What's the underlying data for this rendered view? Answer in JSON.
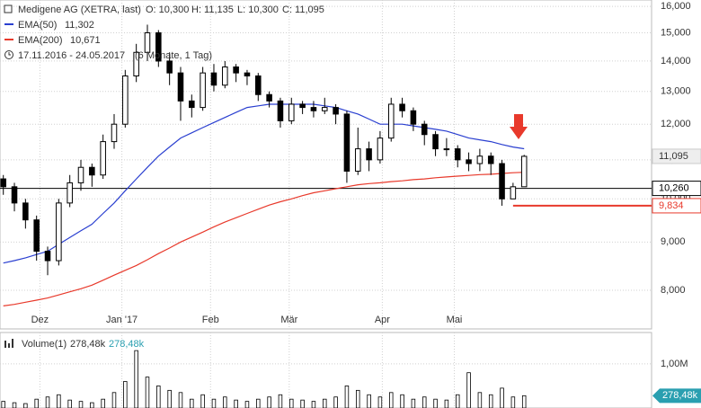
{
  "chart_data": {
    "type": "candlestick",
    "log_scale": true,
    "grid": true,
    "title": "Medigene AG (XETRA, last)",
    "price_summary": [
      "O: 10,300",
      "H: 11,135",
      "L: 10,300",
      "C: 11,095"
    ],
    "date_range": "17.11.2016 - 24.05.2017",
    "period": "(6 Monate, 1 Tag)",
    "ylim": [
      7.28,
      16.25
    ],
    "yticks": [
      {
        "value": 8,
        "label": "8,000"
      },
      {
        "value": 9,
        "label": "9,000"
      },
      {
        "value": 10,
        "label": "10,000"
      },
      {
        "value": 11,
        "label": "11,000"
      },
      {
        "value": 12,
        "label": "12,000"
      },
      {
        "value": 13,
        "label": "13,000"
      },
      {
        "value": 14,
        "label": "14,000"
      },
      {
        "value": 15,
        "label": "15,000"
      },
      {
        "value": 16,
        "label": "16,000"
      }
    ],
    "xlim": [
      -0.3,
      58.5
    ],
    "xticks": [
      {
        "value": 3.3,
        "label": "Dez"
      },
      {
        "value": 10.7,
        "label": "Jan '17"
      },
      {
        "value": 18.7,
        "label": "Feb"
      },
      {
        "value": 25.8,
        "label": "Mär"
      },
      {
        "value": 34.2,
        "label": "Apr"
      },
      {
        "value": 40.7,
        "label": "Mai"
      }
    ],
    "open": [
      10.5,
      10.3,
      9.9,
      9.5,
      8.8,
      8.6,
      9.9,
      10.4,
      10.8,
      10.6,
      11.5,
      12.0,
      13.5,
      14.3,
      15.0,
      14.0,
      13.6,
      12.7,
      12.5,
      13.6,
      13.2,
      13.8,
      13.6,
      13.5,
      12.9,
      12.7,
      12.1,
      12.6,
      12.5,
      12.4,
      12.5,
      12.3,
      10.7,
      11.3,
      11.0,
      11.6,
      12.6,
      12.4,
      12.0,
      11.7,
      11.3,
      11.3,
      11.0,
      10.9,
      11.1,
      10.9,
      10.0,
      10.3
    ],
    "high": [
      10.6,
      10.4,
      10.0,
      9.6,
      8.9,
      10.0,
      10.6,
      11.0,
      10.9,
      11.7,
      12.3,
      13.7,
      14.6,
      15.3,
      15.1,
      14.3,
      13.8,
      12.9,
      13.8,
      13.9,
      14.0,
      13.9,
      13.7,
      13.6,
      13.0,
      12.8,
      12.8,
      12.7,
      12.7,
      12.8,
      12.6,
      12.4,
      11.9,
      11.5,
      11.8,
      12.8,
      12.8,
      12.5,
      12.1,
      11.8,
      11.6,
      11.4,
      11.2,
      11.3,
      11.2,
      11.0,
      10.4,
      11.135
    ],
    "low": [
      10.1,
      9.7,
      9.3,
      8.6,
      8.3,
      8.5,
      9.8,
      10.2,
      10.3,
      10.5,
      11.3,
      11.9,
      13.3,
      14.0,
      13.8,
      13.2,
      12.1,
      12.2,
      12.4,
      13.0,
      13.1,
      13.3,
      13.2,
      12.7,
      12.5,
      11.9,
      12.0,
      12.3,
      12.2,
      12.3,
      12.0,
      10.4,
      10.6,
      10.7,
      10.9,
      11.5,
      12.2,
      11.8,
      11.4,
      11.1,
      11.1,
      10.8,
      10.7,
      10.7,
      10.6,
      9.834,
      10.0,
      10.3
    ],
    "close": [
      10.3,
      9.9,
      9.5,
      8.8,
      8.6,
      9.9,
      10.4,
      10.8,
      10.6,
      11.5,
      12.0,
      13.5,
      14.3,
      15.0,
      14.0,
      13.6,
      12.7,
      12.5,
      13.6,
      13.2,
      13.8,
      13.6,
      13.5,
      12.9,
      12.7,
      12.1,
      12.6,
      12.5,
      12.4,
      12.5,
      12.3,
      10.7,
      11.3,
      11.0,
      11.6,
      12.6,
      12.4,
      12.0,
      11.7,
      11.3,
      11.3,
      11.0,
      10.9,
      11.1,
      10.9,
      10.0,
      10.3,
      11.095
    ],
    "series": [
      {
        "name": "EMA(50)",
        "color": "#2a3fd0",
        "value_label": "11,302",
        "values": [
          8.55,
          8.6,
          8.66,
          8.73,
          8.8,
          8.95,
          9.1,
          9.25,
          9.4,
          9.65,
          9.9,
          10.2,
          10.5,
          10.8,
          11.1,
          11.35,
          11.6,
          11.75,
          11.9,
          12.05,
          12.2,
          12.35,
          12.5,
          12.55,
          12.6,
          12.6,
          12.6,
          12.6,
          12.6,
          12.55,
          12.5,
          12.4,
          12.3,
          12.15,
          12.0,
          12.0,
          12.0,
          11.95,
          11.9,
          11.85,
          11.8,
          11.7,
          11.6,
          11.55,
          11.5,
          11.42,
          11.35,
          11.302
        ]
      },
      {
        "name": "EMA(200)",
        "color": "#e8392b",
        "value_label": "10,671",
        "values": [
          7.7,
          7.73,
          7.77,
          7.81,
          7.85,
          7.91,
          7.97,
          8.03,
          8.1,
          8.2,
          8.3,
          8.4,
          8.5,
          8.62,
          8.75,
          8.87,
          9.0,
          9.11,
          9.22,
          9.34,
          9.45,
          9.55,
          9.65,
          9.75,
          9.85,
          9.93,
          10.0,
          10.08,
          10.15,
          10.2,
          10.25,
          10.3,
          10.35,
          10.38,
          10.4,
          10.43,
          10.45,
          10.48,
          10.5,
          10.53,
          10.55,
          10.57,
          10.59,
          10.61,
          10.62,
          10.64,
          10.66,
          10.671
        ]
      }
    ],
    "last_price": {
      "value": 11.095,
      "label": "11,095"
    },
    "levels": [
      {
        "value": 10.26,
        "label": "10,260",
        "color": "#000000"
      },
      {
        "value": 9.834,
        "label": "9,834",
        "color": "#e8392b"
      }
    ],
    "volume": {
      "name": "Volume(1)",
      "value_label": "278,48k",
      "color": "#2a9fb0",
      "ylim": [
        0,
        1.71
      ],
      "yticks": [
        {
          "value": 1,
          "label": "1,00M"
        }
      ],
      "values": [
        0.15,
        0.12,
        0.1,
        0.2,
        0.25,
        0.3,
        0.18,
        0.15,
        0.12,
        0.2,
        0.35,
        0.6,
        1.3,
        0.7,
        0.5,
        0.4,
        0.35,
        0.2,
        0.3,
        0.2,
        0.25,
        0.18,
        0.15,
        0.2,
        0.25,
        0.3,
        0.2,
        0.18,
        0.15,
        0.2,
        0.25,
        0.5,
        0.4,
        0.3,
        0.25,
        0.35,
        0.3,
        0.2,
        0.25,
        0.2,
        0.18,
        0.3,
        0.8,
        0.35,
        0.3,
        0.45,
        0.25,
        0.27848
      ]
    }
  }
}
